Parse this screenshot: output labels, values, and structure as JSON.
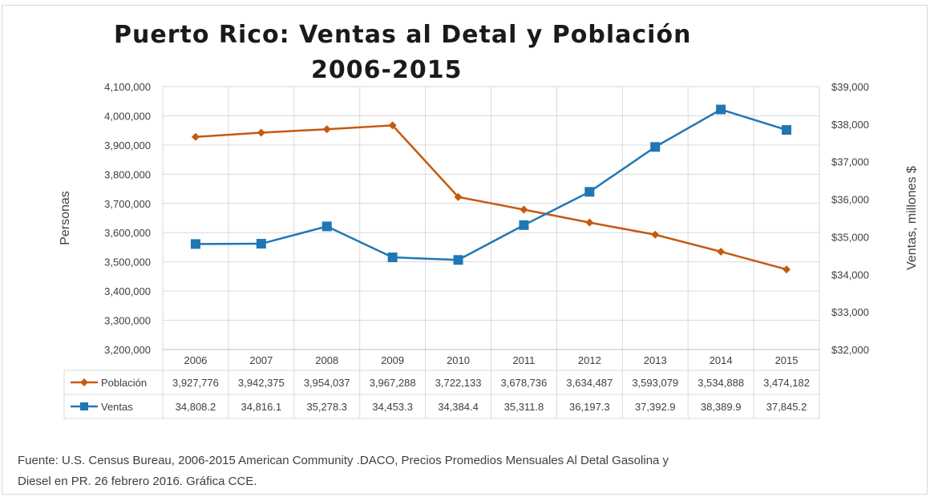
{
  "chart_data": {
    "type": "line",
    "title": "Puerto Rico:  Ventas al Detal y Población",
    "subtitle": "2006-2015",
    "categories": [
      "2006",
      "2007",
      "2008",
      "2009",
      "2010",
      "2011",
      "2012",
      "2013",
      "2014",
      "2015"
    ],
    "ylabel": "Personas",
    "y2label": "Ventas, millones $",
    "ylim": [
      3200000,
      4100000
    ],
    "y2lim": [
      32000,
      39000
    ],
    "yticks": [
      "4,100,000",
      "4,000,000",
      "3,900,000",
      "3,800,000",
      "3,700,000",
      "3,600,000",
      "3,500,000",
      "3,400,000",
      "3,300,000",
      "3,200,000"
    ],
    "y2ticks": [
      "$39,000",
      "$38,000",
      "$37,000",
      "$36,000",
      "$35,000",
      "$34,000",
      "$33,000",
      "$32,000"
    ],
    "grid": true,
    "data_table": true,
    "series": [
      {
        "name": "Población",
        "axis": "left",
        "color": "#c55a11",
        "marker": "diamond",
        "values": [
          3927776,
          3942375,
          3954037,
          3967288,
          3722133,
          3678736,
          3634487,
          3593079,
          3534888,
          3474182
        ],
        "labels": [
          "3,927,776",
          "3,942,375",
          "3,954,037",
          "3,967,288",
          "3,722,133",
          "3,678,736",
          "3,634,487",
          "3,593,079",
          "3,534,888",
          "3,474,182"
        ]
      },
      {
        "name": "Ventas",
        "axis": "right",
        "color": "#1f77b4",
        "marker": "square",
        "values": [
          34808.2,
          34816.1,
          35278.3,
          34453.3,
          34384.4,
          35311.8,
          36197.3,
          37392.9,
          38389.9,
          37845.2
        ],
        "labels": [
          "34,808.2",
          "34,816.1",
          "35,278.3",
          "34,453.3",
          "34,384.4",
          "35,311.8",
          "36,197.3",
          "37,392.9",
          "38,389.9",
          "37,845.2"
        ]
      }
    ]
  },
  "source": {
    "line1": "Fuente: U.S. Census Bureau, 2006-2015   American Community .DACO, Precios Promedios Mensuales Al Detal Gasolina y",
    "line2": "Diesel en PR. 26  febrero 2016.   Gráfica CCE."
  }
}
